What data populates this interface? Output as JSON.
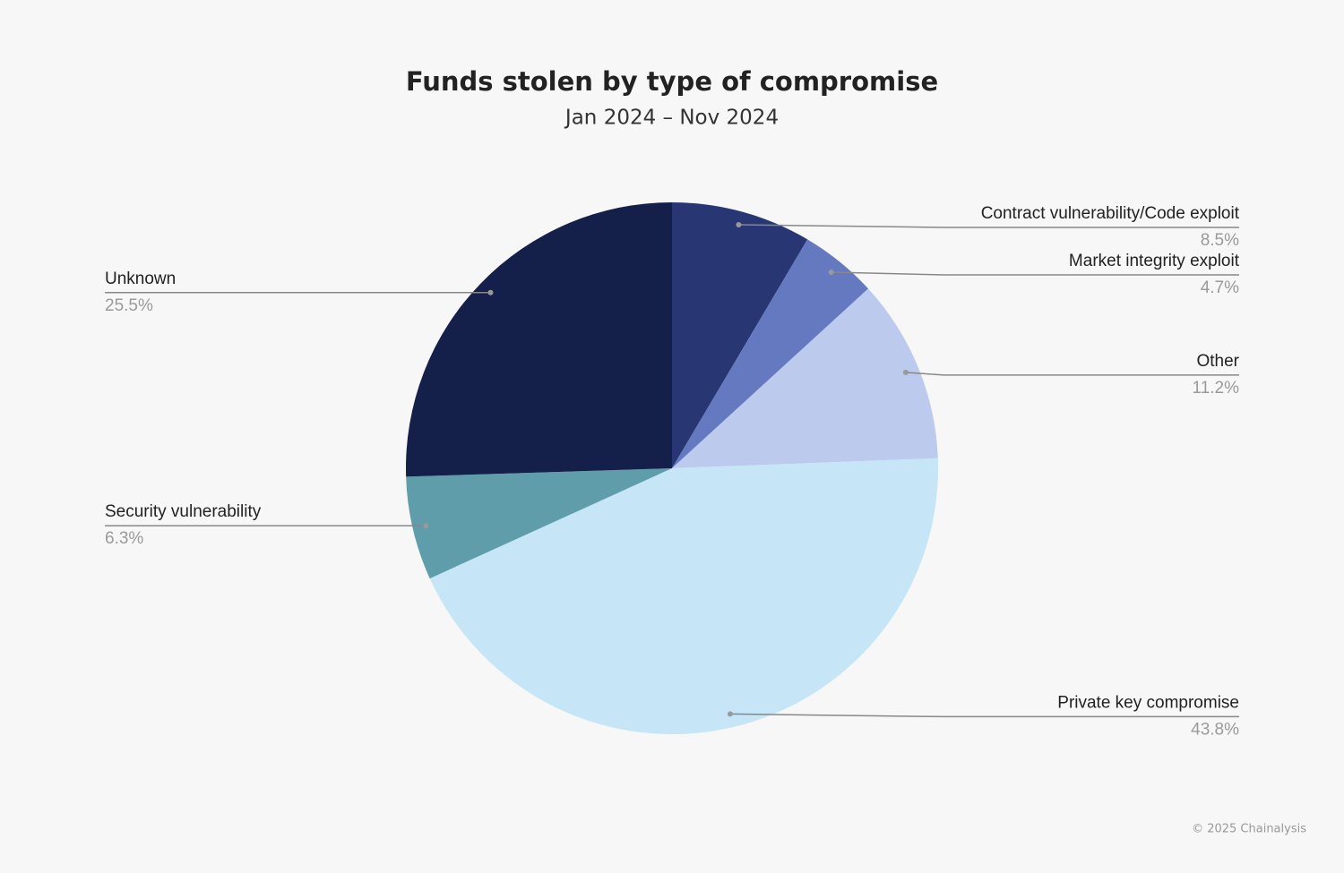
{
  "chart_data": {
    "type": "pie",
    "title": "Funds stolen by type of compromise",
    "subtitle": "Jan 2024 – Nov 2024",
    "source": "© 2025 Chainalysis",
    "categories": [
      "Contract vulnerability/Code exploit",
      "Market integrity exploit",
      "Other",
      "Private key compromise",
      "Security vulnerability",
      "Unknown"
    ],
    "values": [
      8.5,
      4.7,
      11.2,
      43.8,
      6.3,
      25.5
    ],
    "value_labels": [
      "8.5%",
      "4.7%",
      "11.2%",
      "43.8%",
      "6.3%",
      "25.5%"
    ],
    "colors": [
      "#283673",
      "#6479c0",
      "#bccaee",
      "#c6e6f7",
      "#5f9dab",
      "#141f4a"
    ]
  }
}
